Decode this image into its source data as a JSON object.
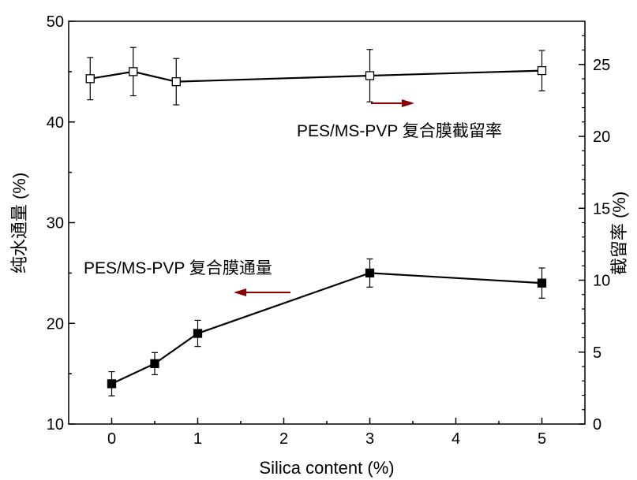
{
  "chart_data": {
    "type": "line",
    "xlabel": "Silica content (%)",
    "ylabel_left": "纯水通量 (%)",
    "ylabel_right": "截留率 (%)",
    "xlim": [
      -0.5,
      5.5
    ],
    "ylim_left": [
      10,
      50
    ],
    "ylim_right": [
      0,
      28
    ],
    "x_ticks": [
      0,
      1,
      2,
      3,
      4,
      5
    ],
    "y_left_ticks": [
      10,
      20,
      30,
      40,
      50
    ],
    "y_right_ticks": [
      0,
      5,
      10,
      15,
      20,
      25
    ],
    "x_tick_labels": [
      "0",
      "1",
      "2",
      "3",
      "4",
      "5"
    ],
    "y_left_tick_labels": [
      "10",
      "20",
      "30",
      "40",
      "50"
    ],
    "y_right_tick_labels": [
      "0",
      "5",
      "10",
      "15",
      "20",
      "25"
    ],
    "grid": false,
    "series": [
      {
        "name": "PES/MS-PVP 复合膜截留率",
        "axis": "left",
        "marker": "open-square",
        "x": [
          -0.25,
          0.25,
          0.75,
          3,
          5
        ],
        "y": [
          44.3,
          45.0,
          44.0,
          44.6,
          45.1
        ],
        "err": [
          2.1,
          2.4,
          2.3,
          2.6,
          2.0
        ]
      },
      {
        "name": "PES/MS-PVP 复合膜通量",
        "axis": "left",
        "marker": "filled-square",
        "x": [
          0,
          0.5,
          1,
          3,
          5
        ],
        "y": [
          14.0,
          16.0,
          19.0,
          25.0,
          24.0
        ],
        "err": [
          1.2,
          1.1,
          1.3,
          1.4,
          1.5
        ]
      }
    ],
    "annotations": [
      {
        "text": "PES/MS-PVP 复合膜截留率",
        "arrow": "right"
      },
      {
        "text": "PES/MS-PVP 复合膜通量",
        "arrow": "left"
      }
    ],
    "colors": {
      "arrow": "#8B0000",
      "line": "#000000"
    }
  }
}
